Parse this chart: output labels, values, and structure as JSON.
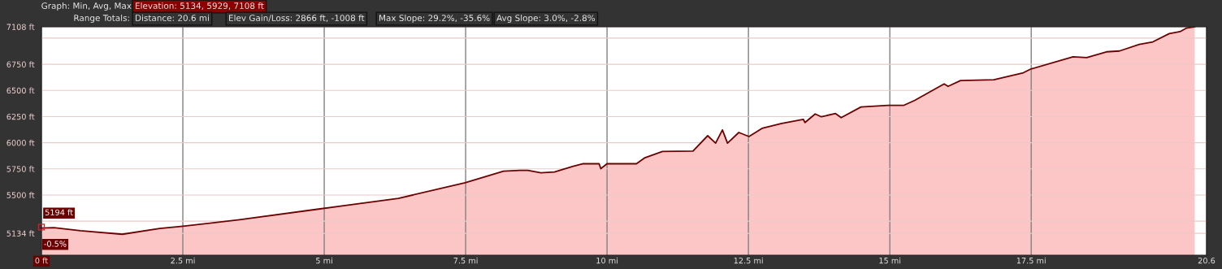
{
  "chart_data": {
    "type": "area",
    "x": [
      0,
      0.22,
      0.69,
      1.43,
      2.09,
      2.5,
      3.5,
      4.9,
      6.31,
      7.49,
      8.17,
      8.46,
      8.6,
      8.83,
      9.07,
      9.4,
      9.58,
      9.86,
      9.89,
      10.0,
      10.52,
      10.66,
      10.98,
      11.52,
      11.78,
      11.92,
      12.04,
      12.13,
      12.33,
      12.51,
      12.74,
      13.09,
      13.47,
      13.5,
      13.68,
      13.79,
      14.04,
      14.14,
      14.49,
      14.97,
      15.25,
      15.44,
      15.96,
      16.03,
      16.25,
      16.84,
      17.36,
      17.49,
      18.24,
      18.48,
      18.83,
      19.06,
      19.41,
      19.65,
      19.94,
      20.13,
      20.24,
      20.39
    ],
    "series": [
      {
        "color": "#6b0000",
        "values": [
          5185,
          5188,
          5159,
          5125,
          5180,
          5201,
          5264,
          5366,
          5468,
          5618,
          5728,
          5736,
          5736,
          5712,
          5720,
          5775,
          5799,
          5799,
          5752,
          5799,
          5799,
          5854,
          5917,
          5921,
          6067,
          5996,
          6122,
          5996,
          6098,
          6059,
          6137,
          6185,
          6224,
          6193,
          6275,
          6248,
          6279,
          6240,
          6342,
          6358,
          6358,
          6405,
          6562,
          6539,
          6594,
          6602,
          6669,
          6704,
          6822,
          6814,
          6869,
          6877,
          6940,
          6964,
          7043,
          7062,
          7095,
          7108
        ]
      }
    ],
    "xlim": [
      0,
      20.6
    ],
    "xticks": [
      {
        "value": 0,
        "label": "0 ft"
      },
      {
        "value": 2.5,
        "label": "2.5 mi"
      },
      {
        "value": 5,
        "label": "5 mi"
      },
      {
        "value": 7.5,
        "label": "7.5 mi"
      },
      {
        "value": 10,
        "label": "10 mi"
      },
      {
        "value": 12.5,
        "label": "12.5 mi"
      },
      {
        "value": 15,
        "label": "15 mi"
      },
      {
        "value": 17.5,
        "label": "17.5 mi"
      },
      20.6
    ],
    "ylim": [
      4925,
      7108
    ],
    "yticks": [
      {
        "value": 5134,
        "label": "5134 ft"
      },
      {
        "value": 5250,
        "label": null
      },
      {
        "value": 5500,
        "label": "5500 ft"
      },
      {
        "value": 5750,
        "label": "5750 ft"
      },
      {
        "value": 6000,
        "label": "6000 ft"
      },
      {
        "value": 6250,
        "label": "6250 ft"
      },
      {
        "value": 6500,
        "label": "6500 ft"
      },
      {
        "value": 6750,
        "label": "6750 ft"
      },
      {
        "value": 7000,
        "label": null
      },
      {
        "value": 7108,
        "label": "7108 ft"
      }
    ],
    "grid": true,
    "annotations": [
      "Graph: Min, Avg, Max",
      "Elevation: 5134, 5929, 7108 ft",
      "Range Totals:",
      "Distance: 20.6 mi",
      "Elev Gain/Loss: 2866 ft, -1008 ft",
      "Max Slope: 29.2%, -35.6%",
      "Avg Slope: 3.0%, -2.8%",
      {
        "text": "5194 ft",
        "x": 0,
        "y": 5194
      },
      "-0.5%"
    ]
  }
}
